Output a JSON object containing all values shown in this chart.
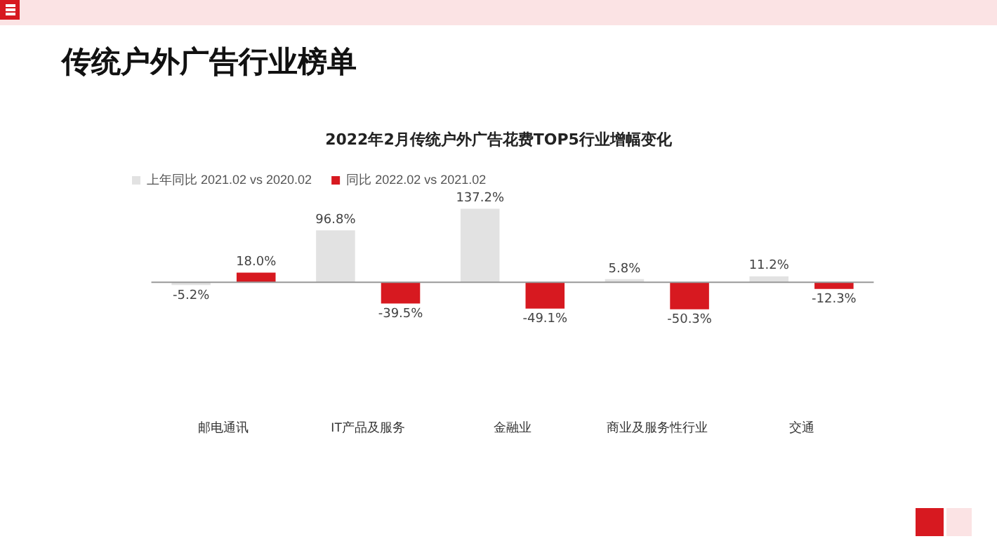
{
  "chart_data": {
    "type": "bar",
    "title": "传统户外广告行业榜单",
    "subtitle": "2022年2月传统户外广告花费TOP5行业增幅变化",
    "categories": [
      "邮电通讯",
      "IT产品及服务",
      "金融业",
      "商业及服务性行业",
      "交通"
    ],
    "series": [
      {
        "name": "上年同比 2021.02 vs 2020.02",
        "color": "#e2e2e2",
        "values": [
          -5.2,
          96.8,
          137.2,
          5.8,
          11.2
        ],
        "value_labels": [
          "-5.2%",
          "96.8%",
          "137.2%",
          "5.8%",
          "11.2%"
        ]
      },
      {
        "name": "同比 2022.02 vs 2021.02",
        "color": "#d71920",
        "values": [
          18.0,
          -39.5,
          -49.1,
          -50.3,
          -12.3
        ],
        "value_labels": [
          "18.0%",
          "-39.5%",
          "-49.1%",
          "-50.3%",
          "-12.3%"
        ]
      }
    ],
    "legend": "top left",
    "grid": false,
    "tick_labels": "x"
  }
}
